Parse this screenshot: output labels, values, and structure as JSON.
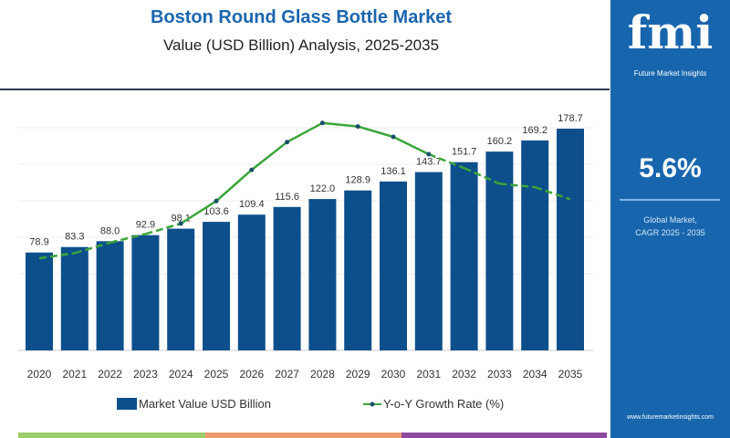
{
  "chart_data": {
    "type": "bar",
    "title": "Boston Round Glass Bottle Market",
    "subtitle": "Value (USD Billion) Analysis, 2025-2035",
    "categories": [
      "2020",
      "2021",
      "2022",
      "2023",
      "2024",
      "2025",
      "2026",
      "2027",
      "2028",
      "2029",
      "2030",
      "2031",
      "2032",
      "2033",
      "2034",
      "2035"
    ],
    "series": [
      {
        "name": "Market Value USD Billion",
        "type": "bar",
        "color": "#0d4f8b",
        "values": [
          78.9,
          83.3,
          88.0,
          92.9,
          98.1,
          103.6,
          109.4,
          115.6,
          122.0,
          128.9,
          136.1,
          143.7,
          151.7,
          160.2,
          169.2,
          178.7
        ],
        "labels": [
          "78.9",
          "83.3",
          "88.0",
          "92.9",
          "98.1",
          "103.6",
          "109.4",
          "115.6",
          "122.0",
          "128.9",
          "136.1",
          "143.7",
          "151.7",
          "160.2",
          "169.2",
          "178.7"
        ]
      },
      {
        "name": "Y-o-Y Growth Rate (%)",
        "type": "line",
        "color": "#3aa53a",
        "values": [
          1.0,
          1.3,
          1.9,
          2.4,
          3.0,
          4.3,
          6.1,
          7.7,
          8.8,
          8.6,
          8.0,
          7.0,
          6.2,
          5.3,
          5.1,
          4.4
        ]
      }
    ],
    "ylim": [
      0,
      190
    ],
    "grid": true,
    "legend": "bottom"
  },
  "panel": {
    "logo": "fmi",
    "logo_text": "Future Market Insights",
    "cagr_value": "5.6%",
    "cagr_label_1": "Global Market,",
    "cagr_label_2": "CAGR 2025 - 2035",
    "url": "www.futuremarketinsights.com",
    "color": "#1766ad"
  }
}
